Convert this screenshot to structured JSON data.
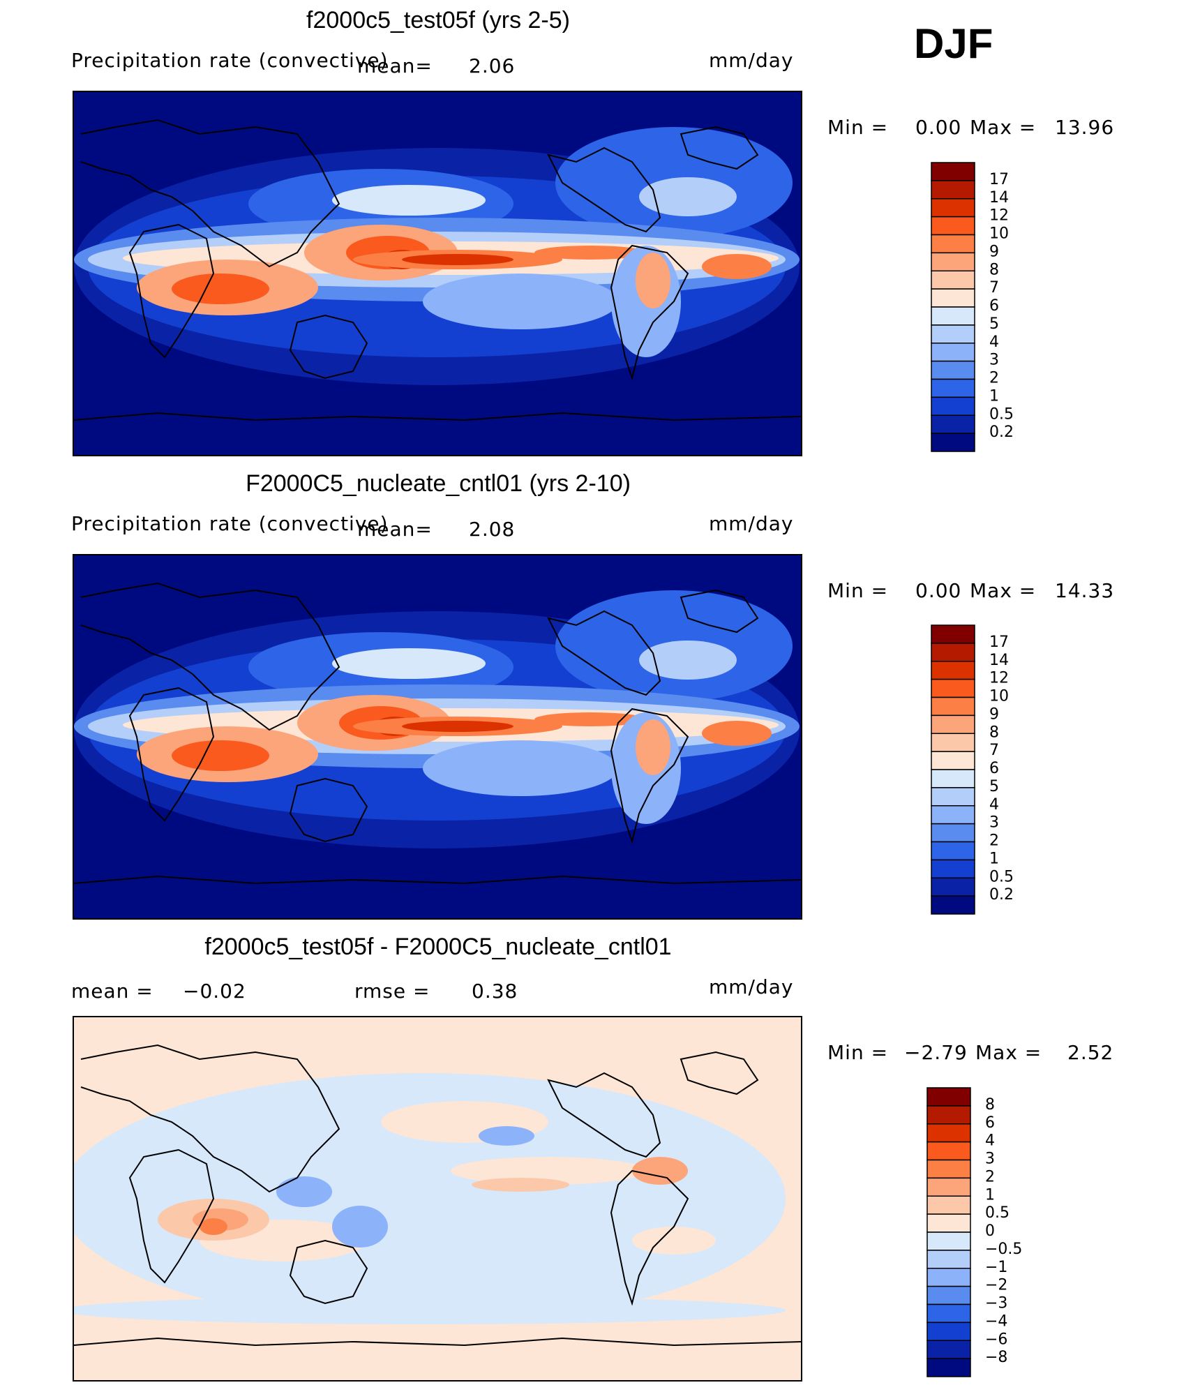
{
  "season": "DJF",
  "chart_data": [
    {
      "type": "heatmap",
      "title": "f2000c5_test05f (yrs 2-5)",
      "field_label": "Precipitation rate (convective)",
      "mean_label": "mean=",
      "mean_value": "2.06",
      "units": "mm/day",
      "min_max": {
        "min_label": "Min =",
        "min": "0.00",
        "max_label": "Max =",
        "max": "13.96"
      },
      "min": 0.0,
      "max": 13.96,
      "colorbar": {
        "labels": [
          "17",
          "14",
          "12",
          "10",
          "9",
          "8",
          "7",
          "6",
          "5",
          "4",
          "3",
          "2",
          "1",
          "0.5",
          "0.2"
        ],
        "colors": [
          "#800000",
          "#b41a00",
          "#dc3200",
          "#fa5a1e",
          "#fc8046",
          "#fca47a",
          "#fcc8aa",
          "#fde6d6",
          "#d6e8fa",
          "#b4cefa",
          "#8cb2fa",
          "#5a8cf0",
          "#2d64e8",
          "#1440d2",
          "#0a23a6",
          "#000a80"
        ]
      },
      "background_color": "#000a80"
    },
    {
      "type": "heatmap",
      "title": "F2000C5_nucleate_cntl01 (yrs 2-10)",
      "field_label": "Precipitation rate (convective)",
      "mean_label": "mean=",
      "mean_value": "2.08",
      "units": "mm/day",
      "min_max": {
        "min_label": "Min =",
        "min": "0.00",
        "max_label": "Max =",
        "max": "14.33"
      },
      "min": 0.0,
      "max": 14.33,
      "colorbar": {
        "labels": [
          "17",
          "14",
          "12",
          "10",
          "9",
          "8",
          "7",
          "6",
          "5",
          "4",
          "3",
          "2",
          "1",
          "0.5",
          "0.2"
        ],
        "colors": [
          "#800000",
          "#b41a00",
          "#dc3200",
          "#fa5a1e",
          "#fc8046",
          "#fca47a",
          "#fcc8aa",
          "#fde6d6",
          "#d6e8fa",
          "#b4cefa",
          "#8cb2fa",
          "#5a8cf0",
          "#2d64e8",
          "#1440d2",
          "#0a23a6",
          "#000a80"
        ]
      },
      "background_color": "#000a80"
    },
    {
      "type": "heatmap",
      "title": "f2000c5_test05f - F2000C5_nucleate_cntl01",
      "mean_label": "mean =",
      "mean_value": "−0.02",
      "rmse_label": "rmse =",
      "rmse_value": "0.38",
      "units": "mm/day",
      "min_max": {
        "min_label": "Min =",
        "min": "−2.79",
        "max_label": "Max =",
        "max": "2.52"
      },
      "min": -2.79,
      "max": 2.52,
      "colorbar": {
        "labels": [
          "8",
          "6",
          "4",
          "3",
          "2",
          "1",
          "0.5",
          "0",
          "−0.5",
          "−1",
          "−2",
          "−3",
          "−4",
          "−6",
          "−8"
        ],
        "colors": [
          "#800000",
          "#b41a00",
          "#dc3200",
          "#fa5a1e",
          "#fc8046",
          "#fca47a",
          "#fcc8aa",
          "#fde6d6",
          "#d6e8fa",
          "#b4cefa",
          "#8cb2fa",
          "#5a8cf0",
          "#2d64e8",
          "#1440d2",
          "#0a23a6",
          "#000a80"
        ]
      },
      "background_color": "#fde6d6"
    }
  ]
}
